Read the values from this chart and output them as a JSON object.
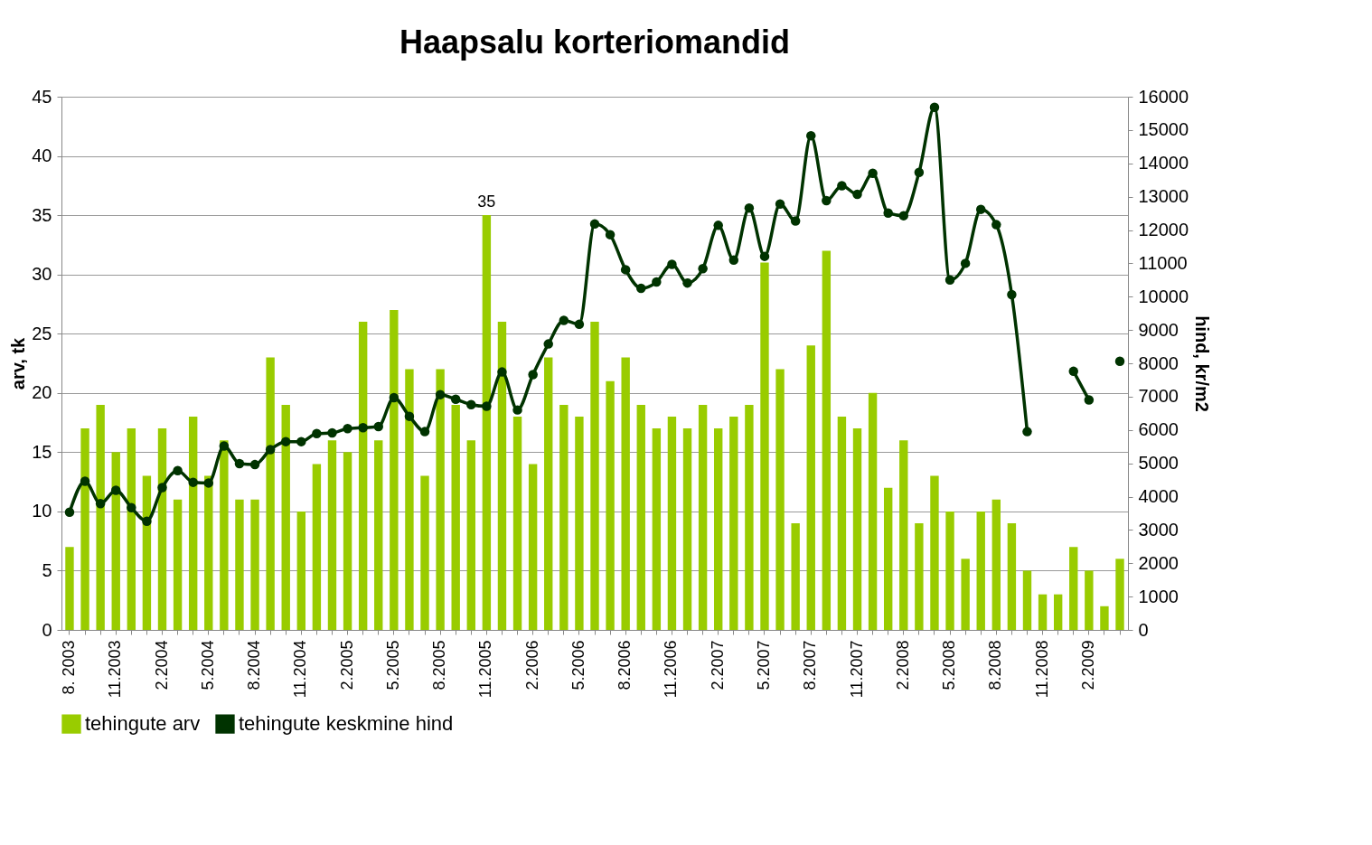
{
  "chart_data": {
    "type": "bar",
    "title": "Haapsalu korteriomandid",
    "ylabel": "arv, tk",
    "y2label": "hind, kr/m2",
    "categories": [
      "8. 2003",
      null,
      null,
      "11.2003",
      null,
      null,
      "2.2004",
      null,
      null,
      "5.2004",
      null,
      null,
      "8.2004",
      null,
      null,
      "11.2004",
      null,
      null,
      "2.2005",
      null,
      null,
      "5.2005",
      null,
      null,
      "8.2005",
      null,
      null,
      "11.2005",
      null,
      null,
      "2.2006",
      null,
      null,
      "5.2006",
      null,
      null,
      "8.2006",
      null,
      null,
      "11.2006",
      null,
      null,
      "2.2007",
      null,
      null,
      "5.2007",
      null,
      null,
      "8.2007",
      null,
      null,
      "11.2007",
      null,
      null,
      "2.2008",
      null,
      null,
      "5.2008",
      null,
      null,
      "8.2008",
      null,
      null,
      "11.2008",
      null,
      null,
      "2.2009",
      null,
      null
    ],
    "series": [
      {
        "name": "tehingute arv",
        "color": "#99cc00",
        "values": [
          7,
          17,
          19,
          15,
          17,
          13,
          17,
          11,
          18,
          13,
          16,
          11,
          11,
          23,
          19,
          10,
          14,
          16,
          15,
          26,
          16,
          27,
          22,
          13,
          22,
          19,
          16,
          35,
          26,
          18,
          14,
          23,
          19,
          18,
          26,
          21,
          23,
          19,
          17,
          18,
          17,
          19,
          17,
          18,
          19,
          31,
          22,
          9,
          24,
          32,
          18,
          17,
          20,
          12,
          16,
          9,
          13,
          10,
          6,
          10,
          11,
          9,
          5,
          3,
          3,
          7,
          5,
          2,
          6
        ],
        "value_labels": [
          null,
          null,
          null,
          null,
          null,
          null,
          null,
          null,
          null,
          null,
          null,
          null,
          null,
          null,
          null,
          null,
          null,
          null,
          null,
          null,
          null,
          null,
          null,
          null,
          null,
          null,
          null,
          "35",
          null,
          null,
          null,
          null,
          null,
          null,
          null,
          null,
          null,
          null,
          null,
          null,
          null,
          null,
          null,
          null,
          null,
          null,
          null,
          null,
          null,
          null,
          null,
          null,
          null,
          null,
          null,
          null,
          null,
          null,
          null,
          null,
          null,
          null,
          null,
          null,
          null,
          null,
          null,
          null,
          null
        ]
      },
      {
        "name": "tehingute keskmine hind",
        "type": "line",
        "axis": "y2",
        "color": "#003300",
        "values": [
          3530,
          4460,
          3790,
          4190,
          3670,
          3260,
          4270,
          4780,
          4430,
          4410,
          5520,
          4990,
          4960,
          5410,
          5650,
          5650,
          5890,
          5910,
          6040,
          6070,
          6100,
          6970,
          6410,
          5950,
          7060,
          6920,
          6760,
          6710,
          7740,
          6600,
          7660,
          8580,
          9290,
          9170,
          12180,
          11860,
          10810,
          10250,
          10440,
          10970,
          10410,
          10840,
          12140,
          11100,
          12660,
          11210,
          12780,
          12270,
          14830,
          12880,
          13330,
          13070,
          13700,
          12510,
          12430,
          13730,
          15680,
          10500,
          11000,
          12620,
          12160,
          10060,
          5950,
          null,
          null,
          7760,
          6900,
          null,
          8060
        ]
      }
    ],
    "ylim": [
      0,
      45
    ],
    "yticks": [
      0,
      5,
      10,
      15,
      20,
      25,
      30,
      35,
      40,
      45
    ],
    "y2lim": [
      0,
      16000
    ],
    "y2ticks": [
      0,
      1000,
      2000,
      3000,
      4000,
      5000,
      6000,
      7000,
      8000,
      9000,
      10000,
      11000,
      12000,
      13000,
      14000,
      15000,
      16000
    ],
    "grid": "y",
    "legend": "bottom",
    "marker": "circle",
    "line_style": "solid"
  }
}
